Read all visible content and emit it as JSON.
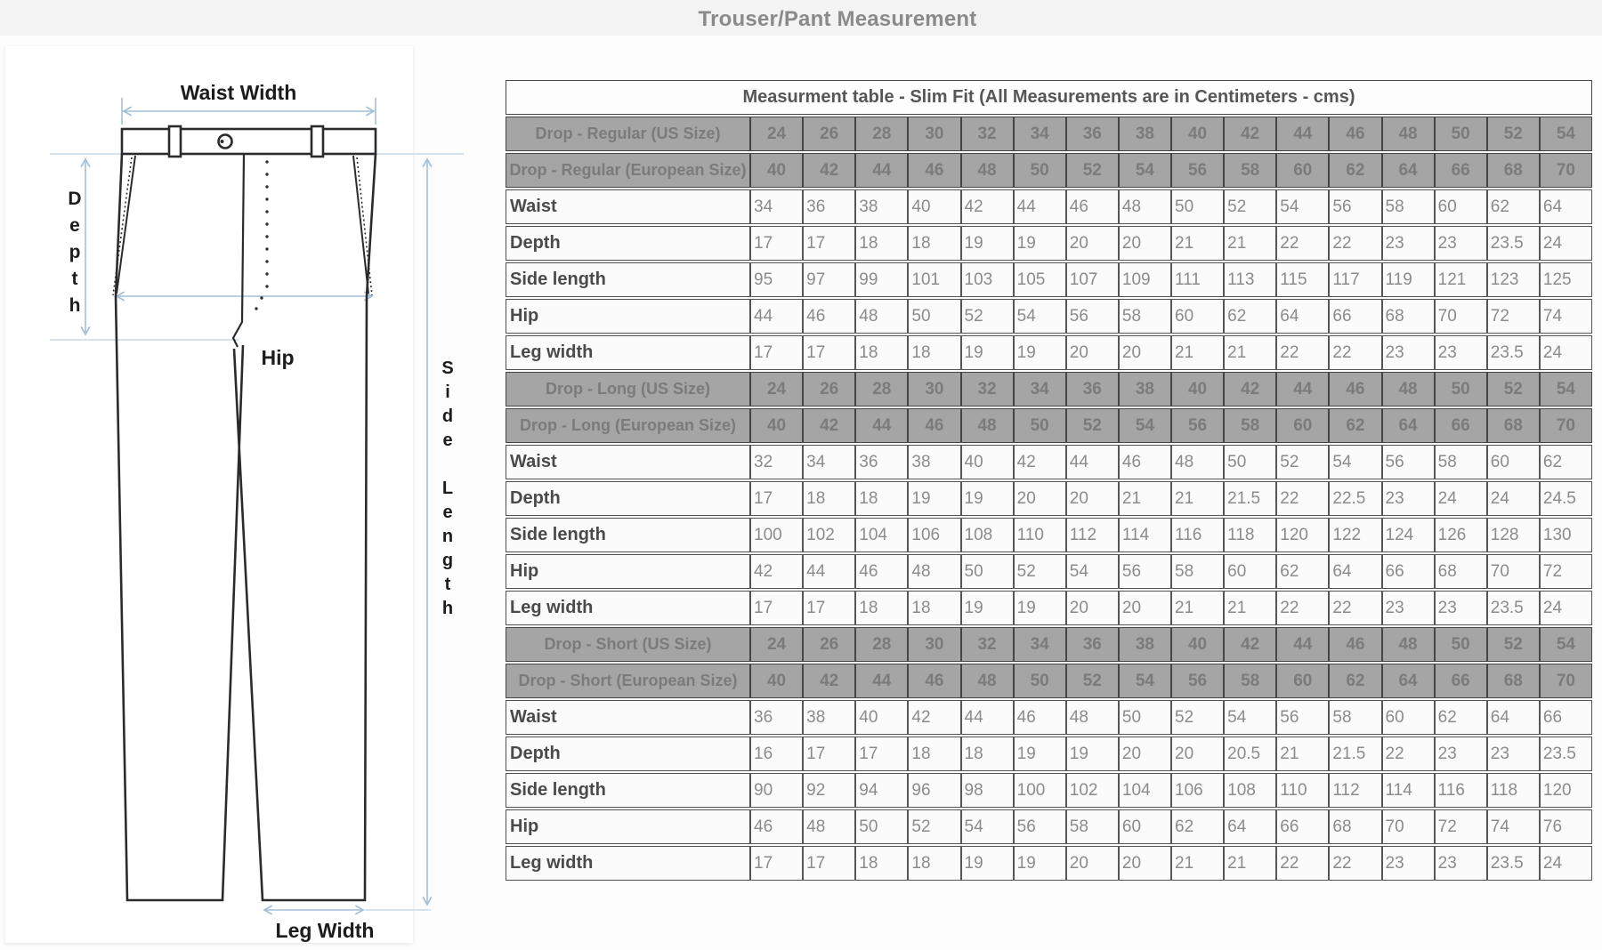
{
  "page_title": "Trouser/Pant Measurement",
  "diagram": {
    "labels": {
      "waist_width": "Waist Width",
      "depth": "Depth",
      "hip": "Hip",
      "side_length": "Side Length",
      "leg_width": "Leg Width"
    },
    "accent_color": "#a4bfd8",
    "outline_color": "#2b2b2b"
  },
  "table": {
    "title": "Measurment table - Slim Fit (All Measurements are in Centimeters - cms)",
    "sections": [
      {
        "us_label": "Drop - Regular (US Size)",
        "eu_label": "Drop - Regular (European Size)",
        "us_sizes": [
          24,
          26,
          28,
          30,
          32,
          34,
          36,
          38,
          40,
          42,
          44,
          46,
          48,
          50,
          52,
          54
        ],
        "eu_sizes": [
          40,
          42,
          44,
          46,
          48,
          50,
          52,
          54,
          56,
          58,
          60,
          62,
          64,
          66,
          68,
          70
        ],
        "measurements": [
          {
            "label": "Waist",
            "values": [
              34,
              36,
              38,
              40,
              42,
              44,
              46,
              48,
              50,
              52,
              54,
              56,
              58,
              60,
              62,
              64
            ]
          },
          {
            "label": "Depth",
            "values": [
              17,
              17,
              18,
              18,
              19,
              19,
              20,
              20,
              21,
              21,
              22,
              22,
              23,
              23,
              23.5,
              24
            ]
          },
          {
            "label": "Side length",
            "values": [
              95,
              97,
              99,
              101,
              103,
              105,
              107,
              109,
              111,
              113,
              115,
              117,
              119,
              121,
              123,
              125
            ]
          },
          {
            "label": "Hip",
            "values": [
              44,
              46,
              48,
              50,
              52,
              54,
              56,
              58,
              60,
              62,
              64,
              66,
              68,
              70,
              72,
              74
            ]
          },
          {
            "label": "Leg width",
            "values": [
              17,
              17,
              18,
              18,
              19,
              19,
              20,
              20,
              21,
              21,
              22,
              22,
              23,
              23,
              23.5,
              24
            ]
          }
        ]
      },
      {
        "us_label": "Drop - Long (US Size)",
        "eu_label": "Drop - Long (European Size)",
        "us_sizes": [
          24,
          26,
          28,
          30,
          32,
          34,
          36,
          38,
          40,
          42,
          44,
          46,
          48,
          50,
          52,
          54
        ],
        "eu_sizes": [
          40,
          42,
          44,
          46,
          48,
          50,
          52,
          54,
          56,
          58,
          60,
          62,
          64,
          66,
          68,
          70
        ],
        "measurements": [
          {
            "label": "Waist",
            "values": [
              32,
              34,
              36,
              38,
              40,
              42,
              44,
              46,
              48,
              50,
              52,
              54,
              56,
              58,
              60,
              62
            ]
          },
          {
            "label": "Depth",
            "values": [
              17,
              18,
              18,
              19,
              19,
              20,
              20,
              21,
              21,
              21.5,
              22,
              22.5,
              23,
              24,
              24,
              24.5
            ]
          },
          {
            "label": "Side length",
            "values": [
              100,
              102,
              104,
              106,
              108,
              110,
              112,
              114,
              116,
              118,
              120,
              122,
              124,
              126,
              128,
              130
            ]
          },
          {
            "label": "Hip",
            "values": [
              42,
              44,
              46,
              48,
              50,
              52,
              54,
              56,
              58,
              60,
              62,
              64,
              66,
              68,
              70,
              72
            ]
          },
          {
            "label": "Leg width",
            "values": [
              17,
              17,
              18,
              18,
              19,
              19,
              20,
              20,
              21,
              21,
              22,
              22,
              23,
              23,
              23.5,
              24
            ]
          }
        ]
      },
      {
        "us_label": "Drop - Short (US Size)",
        "eu_label": "Drop - Short (European Size)",
        "us_sizes": [
          24,
          26,
          28,
          30,
          32,
          34,
          36,
          38,
          40,
          42,
          44,
          46,
          48,
          50,
          52,
          54
        ],
        "eu_sizes": [
          40,
          42,
          44,
          46,
          48,
          50,
          52,
          54,
          56,
          58,
          60,
          62,
          64,
          66,
          68,
          70
        ],
        "measurements": [
          {
            "label": "Waist",
            "values": [
              36,
              38,
              40,
              42,
              44,
              46,
              48,
              50,
              52,
              54,
              56,
              58,
              60,
              62,
              64,
              66
            ]
          },
          {
            "label": "Depth",
            "values": [
              16,
              17,
              17,
              18,
              18,
              19,
              19,
              20,
              20,
              20.5,
              21,
              21.5,
              22,
              23,
              23,
              23.5
            ]
          },
          {
            "label": "Side length",
            "values": [
              90,
              92,
              94,
              96,
              98,
              100,
              102,
              104,
              106,
              108,
              110,
              112,
              114,
              116,
              118,
              120
            ]
          },
          {
            "label": "Hip",
            "values": [
              46,
              48,
              50,
              52,
              54,
              56,
              58,
              60,
              62,
              64,
              66,
              68,
              70,
              72,
              74,
              76
            ]
          },
          {
            "label": "Leg width",
            "values": [
              17,
              17,
              18,
              18,
              19,
              19,
              20,
              20,
              21,
              21,
              22,
              22,
              23,
              23,
              23.5,
              24
            ]
          }
        ]
      }
    ]
  }
}
